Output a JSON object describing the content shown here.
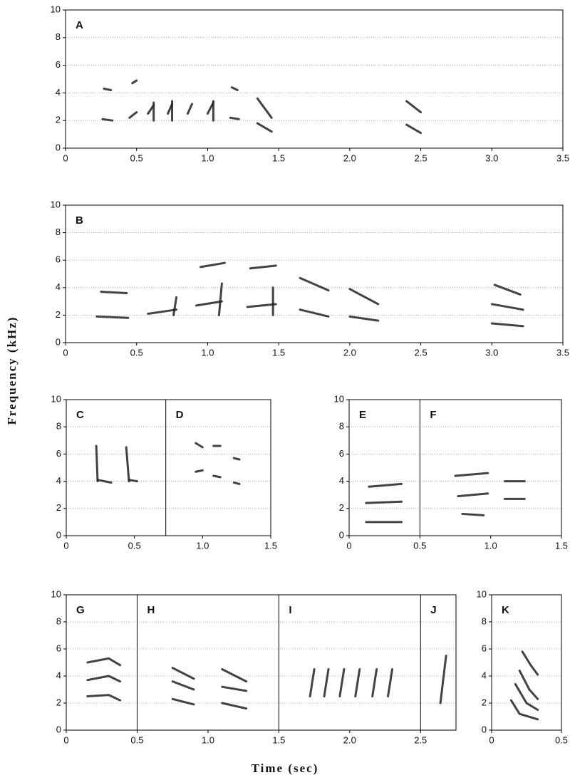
{
  "figure": {
    "x_label": "Time (sec)",
    "y_label": "Frequency (kHz)"
  },
  "chart_data": [
    {
      "type": "spectrogram",
      "labels": [
        "A"
      ],
      "dividers": [],
      "xlim": [
        0,
        3.5
      ],
      "ylim": [
        0,
        10
      ],
      "xticks": [
        0,
        0.5,
        {
          "value": 1,
          "label": "1.0"
        },
        1.5,
        {
          "value": 2,
          "label": "2.0"
        },
        2.5,
        {
          "value": 3,
          "label": "3.0"
        },
        3.5
      ],
      "yticks": [
        0,
        2,
        4,
        6,
        8,
        10
      ],
      "grid": true
    },
    {
      "type": "spectrogram",
      "labels": [
        "B"
      ],
      "dividers": [],
      "xlim": [
        0,
        3.5
      ],
      "ylim": [
        0,
        10
      ],
      "xticks": [
        0,
        0.5,
        {
          "value": 1,
          "label": "1.0"
        },
        1.5,
        {
          "value": 2,
          "label": "2.0"
        },
        2.5,
        {
          "value": 3,
          "label": "3.0"
        },
        3.5
      ],
      "yticks": [
        0,
        2,
        4,
        6,
        8,
        10
      ],
      "grid": true
    },
    {
      "type": "spectrogram",
      "labels": [
        "C",
        "D"
      ],
      "dividers": [
        0.73
      ],
      "xlim": [
        0,
        1.5
      ],
      "ylim": [
        0,
        10
      ],
      "xticks": [
        0,
        0.5,
        {
          "value": 1,
          "label": "1.0"
        },
        1.5
      ],
      "yticks": [
        0,
        2,
        4,
        6,
        8,
        10
      ],
      "grid": true
    },
    {
      "type": "spectrogram",
      "labels": [
        "E",
        "F"
      ],
      "dividers": [
        0.5
      ],
      "xlim": [
        0,
        1.5
      ],
      "ylim": [
        0,
        10
      ],
      "xticks": [
        0,
        0.5,
        {
          "value": 1,
          "label": "1.0"
        },
        1.5
      ],
      "yticks": [
        0,
        2,
        4,
        6,
        8,
        10
      ],
      "grid": true
    },
    {
      "type": "spectrogram",
      "labels": [
        "G",
        "H",
        "I",
        "J"
      ],
      "dividers": [
        0.5,
        1.5,
        2.5
      ],
      "xlim": [
        0,
        2.75
      ],
      "ylim": [
        0,
        10
      ],
      "xticks": [
        0,
        0.5,
        {
          "value": 1,
          "label": "1.0"
        },
        1.5,
        {
          "value": 2,
          "label": "2.0"
        },
        2.5
      ],
      "yticks": [
        0,
        2,
        4,
        6,
        8,
        10
      ],
      "grid": true
    },
    {
      "type": "spectrogram",
      "labels": [
        "K"
      ],
      "dividers": [],
      "xlim": [
        0,
        0.5
      ],
      "ylim": [
        0,
        10
      ],
      "xticks": [
        0,
        0.5
      ],
      "yticks": [
        0,
        2,
        4,
        6,
        8,
        10
      ],
      "grid": true
    }
  ]
}
